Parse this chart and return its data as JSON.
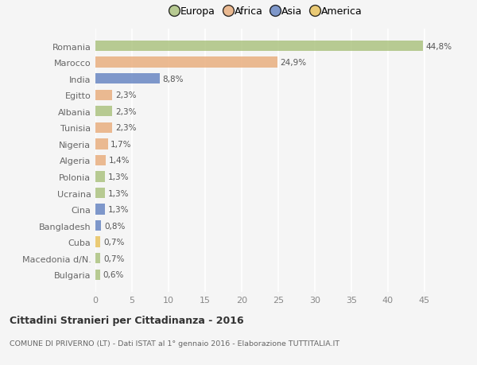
{
  "categories": [
    "Romania",
    "Marocco",
    "India",
    "Egitto",
    "Albania",
    "Tunisia",
    "Nigeria",
    "Algeria",
    "Polonia",
    "Ucraina",
    "Cina",
    "Bangladesh",
    "Cuba",
    "Macedonia d/N.",
    "Bulgaria"
  ],
  "values": [
    44.8,
    24.9,
    8.8,
    2.3,
    2.3,
    2.3,
    1.7,
    1.4,
    1.3,
    1.3,
    1.3,
    0.8,
    0.7,
    0.7,
    0.6
  ],
  "colors": [
    "#a8c07a",
    "#e8aa78",
    "#6080c0",
    "#e8aa78",
    "#a8c07a",
    "#e8aa78",
    "#e8aa78",
    "#e8aa78",
    "#a8c07a",
    "#a8c07a",
    "#6080c0",
    "#6080c0",
    "#e8c055",
    "#a8c07a",
    "#a8c07a"
  ],
  "labels": [
    "44,8%",
    "24,9%",
    "8,8%",
    "2,3%",
    "2,3%",
    "2,3%",
    "1,7%",
    "1,4%",
    "1,3%",
    "1,3%",
    "1,3%",
    "0,8%",
    "0,7%",
    "0,7%",
    "0,6%"
  ],
  "legend_labels": [
    "Europa",
    "Africa",
    "Asia",
    "America"
  ],
  "legend_colors": [
    "#a8c07a",
    "#e8aa78",
    "#6080c0",
    "#e8c055"
  ],
  "title_line1": "Cittadini Stranieri per Cittadinanza - 2016",
  "title_line2": "COMUNE DI PRIVERNO (LT) - Dati ISTAT al 1° gennaio 2016 - Elaborazione TUTTITALIA.IT",
  "xlim": [
    0,
    47
  ],
  "xticks": [
    0,
    5,
    10,
    15,
    20,
    25,
    30,
    35,
    40,
    45
  ],
  "background_color": "#f5f5f5",
  "grid_color": "#ffffff",
  "bar_alpha": 0.8,
  "bar_height": 0.65
}
